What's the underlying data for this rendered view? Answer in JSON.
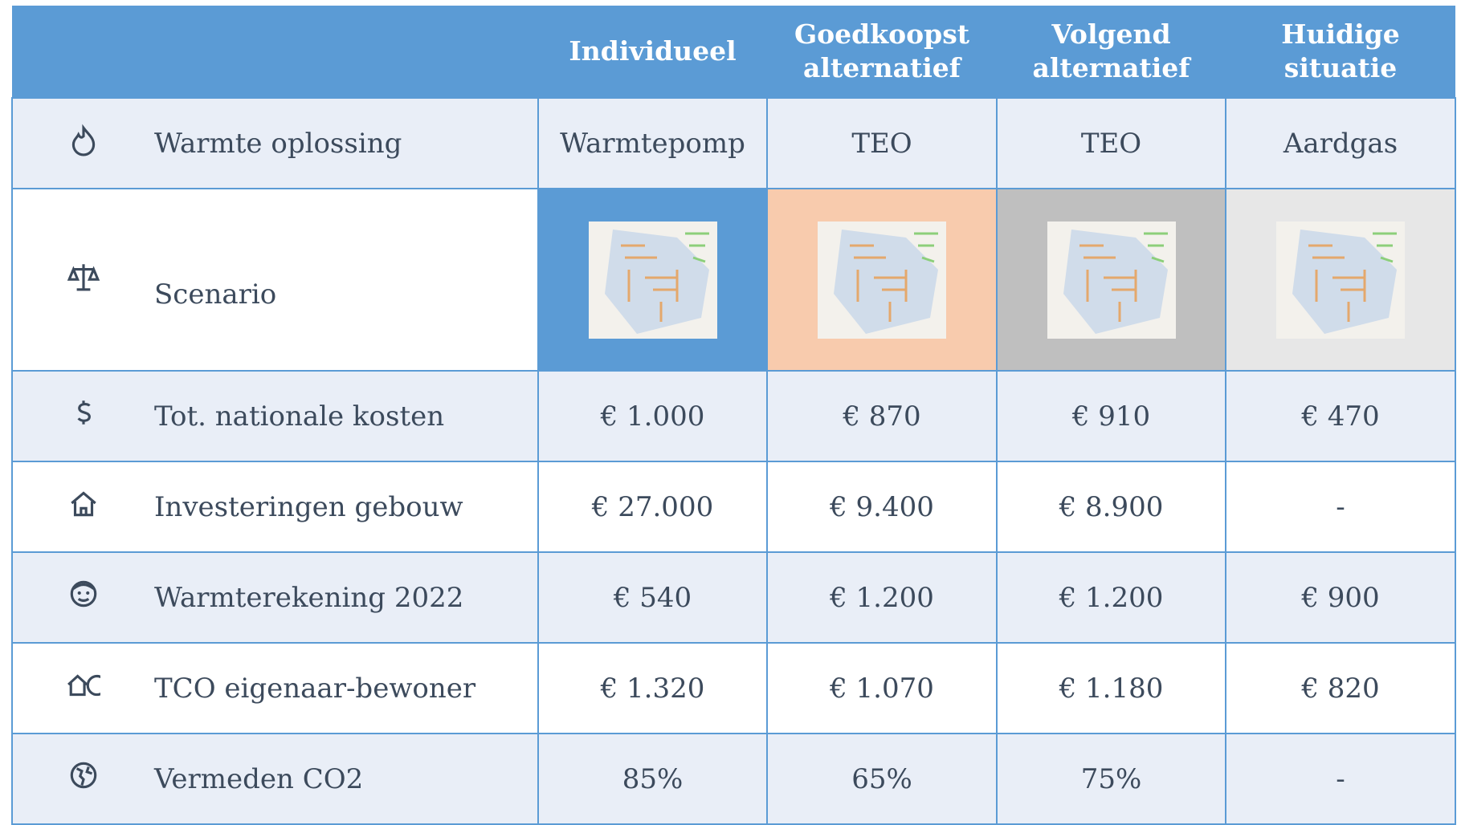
{
  "table": {
    "columns": [
      "Individueel",
      "Goedkoopst alternatief",
      "Volgend alternatief",
      "Huidige situatie"
    ],
    "rows": [
      {
        "label": "Warmte oplossing",
        "cells": [
          "Warmtepomp",
          "TEO",
          "TEO",
          "Aardgas"
        ]
      },
      {
        "label": "Scenario"
      },
      {
        "label": "Tot. nationale kosten",
        "cells": [
          "€ 1.000",
          "€ 870",
          "€ 910",
          "€ 470"
        ]
      },
      {
        "label": "Investeringen gebouw",
        "cells": [
          "€ 27.000",
          "€ 9.400",
          "€ 8.900",
          "-"
        ]
      },
      {
        "label": "Warmterekening 2022",
        "cells": [
          "€ 540",
          "€ 1.200",
          "€ 1.200",
          "€ 900"
        ]
      },
      {
        "label": "TCO eigenaar-bewoner",
        "cells": [
          "€ 1.320",
          "€ 1.070",
          "€ 1.180",
          "€ 820"
        ]
      },
      {
        "label": "Vermeden CO2",
        "cells": [
          "85%",
          "65%",
          "75%",
          "-"
        ]
      }
    ]
  }
}
